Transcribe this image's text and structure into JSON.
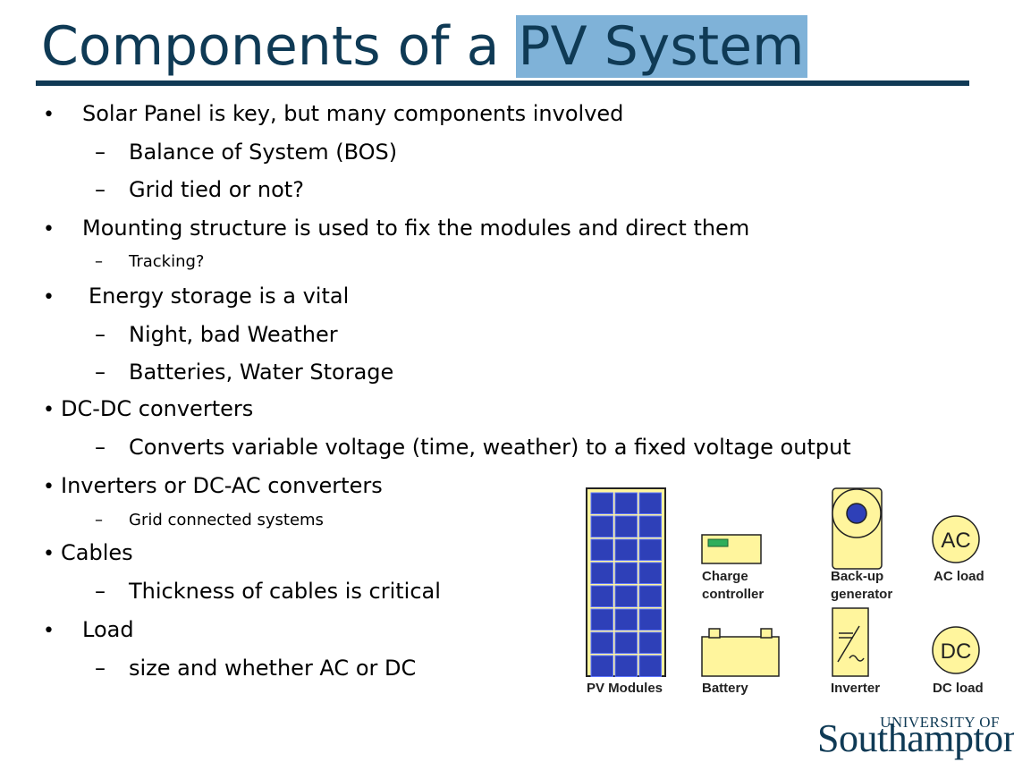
{
  "title": {
    "part1": "Components of a ",
    "highlight": "PV System"
  },
  "bullets": [
    {
      "text": "Solar Panel is key, but many components involved",
      "marker": "•",
      "sub": [
        "Balance of System (BOS)",
        "Grid tied or not?"
      ]
    },
    {
      "text": "Mounting structure is used to fix the modules and direct them",
      "marker": "•",
      "sub": [
        "Tracking?"
      ]
    },
    {
      "text": "Energy storage is a vital",
      "marker": "•",
      "sub": [
        "Night, bad Weather",
        "Batteries, Water Storage"
      ]
    },
    {
      "text": "DC-DC converters",
      "marker": "•",
      "sub": [
        "Converts variable voltage (time, weather)  to a fixed voltage output"
      ]
    },
    {
      "text": "Inverters or DC-AC converters",
      "marker": "•",
      "sub": [
        "Grid connected systems"
      ]
    },
    {
      "text": "Cables",
      "marker": "•",
      "sub": [
        "Thickness of cables is critical"
      ]
    },
    {
      "text": "Load",
      "marker": "•",
      "sub": [
        "size and whether  AC or DC"
      ]
    }
  ],
  "dash": "–",
  "diagram": {
    "labels": {
      "pv": "PV Modules",
      "charge1": "Charge",
      "charge2": "controller",
      "backup1": "Back-up",
      "backup2": "generator",
      "ac_load": "AC load",
      "battery": "Battery",
      "inverter": "Inverter",
      "dc_load": "DC load"
    },
    "ac_symbol": "AC",
    "dc_symbol": "DC"
  },
  "logo": {
    "top": "UNIVERSITY OF",
    "main": "Southampton"
  },
  "colors": {
    "title": "#0f3a55",
    "highlight": "#7fb2d8",
    "panel_cell": "#2e40b8",
    "component_fill": "#fff59d"
  }
}
